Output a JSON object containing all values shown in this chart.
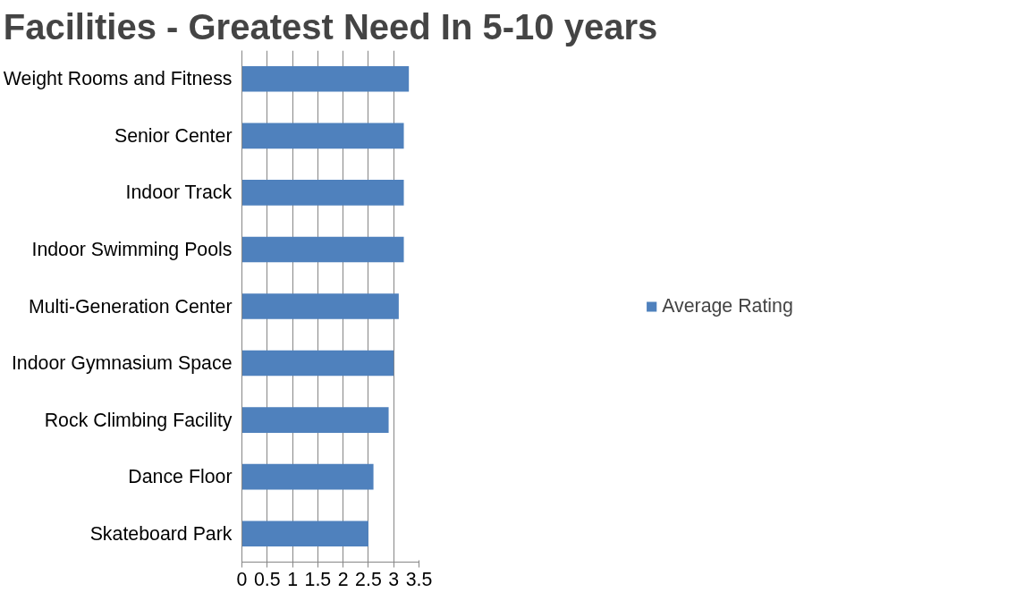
{
  "chart_data": {
    "type": "bar",
    "orientation": "horizontal",
    "title": "Facilities - Greatest Need In 5-10 years",
    "categories": [
      "Weight Rooms and Fitness",
      "Senior Center",
      "Indoor Track",
      "Indoor Swimming Pools",
      "Multi-Generation Center",
      "Indoor Gymnasium Space",
      "Rock Climbing Facility",
      "Dance Floor",
      "Skateboard Park"
    ],
    "series": [
      {
        "name": "Average Rating",
        "color": "#4f81bd",
        "values": [
          3.3,
          3.2,
          3.2,
          3.2,
          3.1,
          3.0,
          2.9,
          2.6,
          2.5
        ]
      }
    ],
    "xlim": [
      0,
      3.5
    ],
    "xticks": [
      0,
      0.5,
      1,
      1.5,
      2,
      2.5,
      3,
      3.5
    ],
    "grid": "x",
    "legend": "right"
  }
}
